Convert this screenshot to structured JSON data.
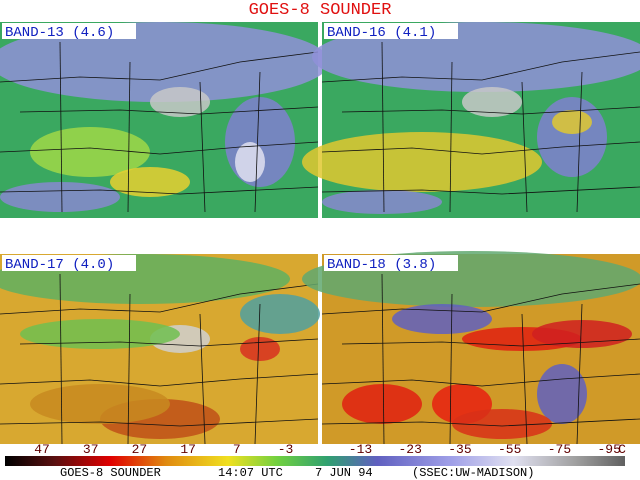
{
  "title": "GOES-8 SOUNDER",
  "panels": [
    {
      "label": "BAND-13 (4.6)"
    },
    {
      "label": "BAND-16 (4.1)"
    },
    {
      "label": "BAND-17 (4.0)"
    },
    {
      "label": "BAND-18 (3.8)"
    }
  ],
  "colorbar": {
    "labels": [
      "47",
      "37",
      "27",
      "17",
      "7",
      "-3",
      "-13",
      "-23",
      "-35",
      "-55",
      "-75",
      "-95"
    ],
    "unit": "C"
  },
  "footer": {
    "satellite": "GOES-8 SOUNDER",
    "time": "14:07 UTC",
    "date": "7 JUN 94",
    "source": "(SSEC:UW-MADISON)"
  }
}
